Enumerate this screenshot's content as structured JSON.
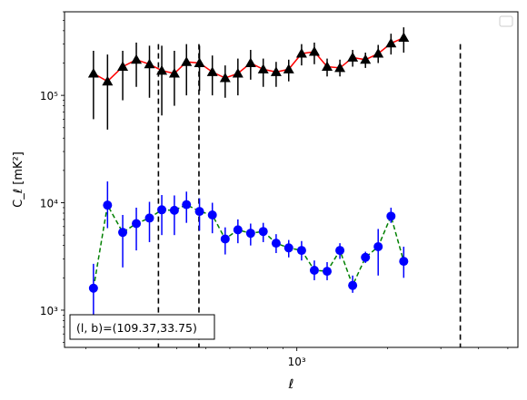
{
  "chart_data": {
    "type": "scatter",
    "x_scale": "log",
    "y_scale": "log",
    "xlabel": "ℓ",
    "ylabel": "C_ℓ  [mK²]",
    "x_ticks": [
      {
        "value": 1000,
        "label": "10³"
      }
    ],
    "y_ticks": [
      {
        "value": 1000,
        "label": "10³"
      },
      {
        "value": 10000,
        "label": "10⁴"
      },
      {
        "value": 100000,
        "label": "10⁵"
      }
    ],
    "xlim": [
      170,
      5400
    ],
    "ylim": [
      450,
      600000
    ],
    "legend": {
      "location": "top-right",
      "entries": []
    },
    "annotation": "(l, b)=(109.37,33.75)",
    "vlines": [
      348,
      474,
      3480
    ],
    "x": [
      212,
      236,
      265,
      294,
      325,
      357,
      393,
      431,
      476,
      525,
      579,
      638,
      703,
      774,
      854,
      940,
      1037,
      1143,
      1260,
      1389,
      1531,
      1688,
      1860,
      2051,
      2260,
      2492,
      2746,
      3027,
      3337,
      3678,
      4054,
      4468
    ],
    "series": [
      {
        "color": "#000000",
        "line_color": "#ff0000",
        "linestyle": "solid",
        "marker": "triangle",
        "values": [
          160000,
          135000,
          185000,
          215000,
          195000,
          170000,
          160000,
          205000,
          200000,
          165000,
          145000,
          160000,
          200000,
          175000,
          165000,
          175000,
          245000,
          255000,
          185000,
          180000,
          225000,
          215000,
          245000,
          305000,
          345000
        ],
        "x_index_start": 0,
        "x_index": [
          0,
          1,
          2,
          3,
          4,
          5,
          6,
          7,
          8,
          9,
          10,
          11,
          12,
          13,
          14,
          15,
          16,
          17,
          18,
          19,
          20,
          21,
          22,
          23,
          24
        ],
        "error_low": [
          60000,
          48000,
          90000,
          120000,
          95000,
          65000,
          80000,
          100000,
          110000,
          100000,
          95000,
          100000,
          140000,
          120000,
          120000,
          135000,
          190000,
          195000,
          150000,
          150000,
          185000,
          180000,
          200000,
          240000,
          250000
        ],
        "error_high": [
          260000,
          240000,
          260000,
          310000,
          290000,
          290000,
          260000,
          300000,
          290000,
          235000,
          190000,
          220000,
          265000,
          220000,
          205000,
          215000,
          300000,
          310000,
          220000,
          215000,
          265000,
          250000,
          295000,
          375000,
          430000
        ]
      },
      {
        "color": "#0000ff",
        "line_color": "#008000",
        "linestyle": "dashed",
        "marker": "circle",
        "values": [
          1600,
          9500,
          5300,
          6400,
          7200,
          8600,
          8500,
          9600,
          8300,
          7700,
          4600,
          5600,
          5200,
          5400,
          4200,
          3800,
          3600,
          2350,
          2300,
          3600,
          1700,
          3100,
          3900,
          7500,
          2850
        ],
        "x_index": [
          0,
          1,
          2,
          3,
          4,
          5,
          6,
          7,
          8,
          9,
          10,
          11,
          12,
          13,
          14,
          15,
          16,
          17,
          18,
          19,
          20,
          21,
          22,
          23,
          24
        ],
        "error_low": [
          700,
          5800,
          2500,
          3600,
          4300,
          5000,
          5000,
          6500,
          5500,
          5200,
          3300,
          4200,
          4000,
          4300,
          3400,
          3100,
          2900,
          1900,
          1900,
          3000,
          1450,
          2750,
          2100,
          6500,
          2000
        ],
        "error_high": [
          2700,
          15800,
          7700,
          9000,
          10200,
          11800,
          11700,
          12700,
          11000,
          10000,
          5900,
          7000,
          6400,
          6500,
          5100,
          4500,
          4400,
          2900,
          2800,
          4200,
          2100,
          3500,
          5700,
          9000,
          3900
        ]
      }
    ]
  }
}
